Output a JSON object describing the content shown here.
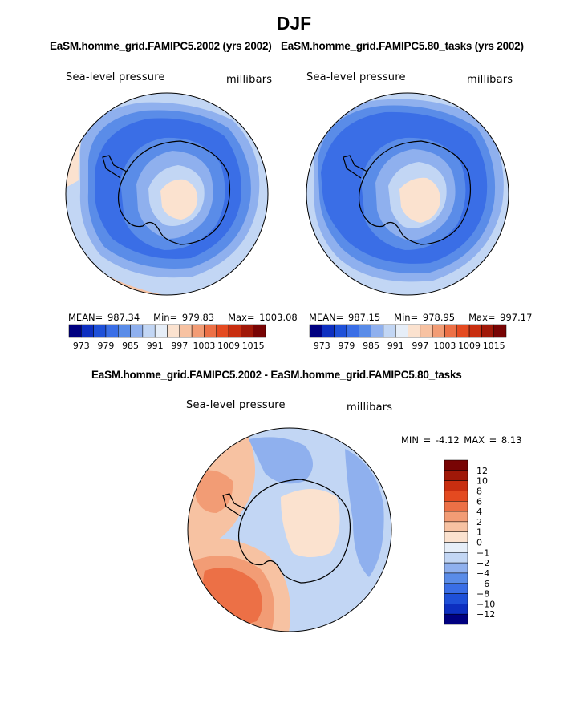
{
  "season": "DJF",
  "panels": [
    {
      "title": "EaSM.homme_grid.FAMIPC5.2002 (yrs 2002)",
      "variable": "Sea-level pressure",
      "units": "millibars",
      "mean_label": "MEAN=",
      "mean": "987.34",
      "min_label": "Min=",
      "min": "979.83",
      "max_label": "Max=",
      "max": "1003.08"
    },
    {
      "title": "EaSM.homme_grid.FAMIPC5.80_tasks (yrs 2002)",
      "variable": "Sea-level pressure",
      "units": "millibars",
      "mean_label": "MEAN=",
      "mean": "987.15",
      "min_label": "Min=",
      "min": "978.95",
      "max_label": "Max=",
      "max": "997.17"
    }
  ],
  "diff": {
    "title": "EaSM.homme_grid.FAMIPC5.2002 - EaSM.homme_grid.FAMIPC5.80_tasks",
    "variable": "Sea-level pressure",
    "units": "millibars",
    "min_label": "MIN =",
    "min": "-4.12",
    "max_label": "MAX =",
    "max": "8.13"
  },
  "chart_data": [
    {
      "type": "heatmap",
      "projection": "south polar stereographic",
      "title": "EaSM.homme_grid.FAMIPC5.2002 (yrs 2002)",
      "variable": "Sea-level pressure",
      "units": "millibars",
      "colorbar_ticks": [
        973,
        979,
        985,
        991,
        997,
        1003,
        1009,
        1015
      ],
      "colorbar_colors": [
        "#000080",
        "#0d2fc0",
        "#1e50d8",
        "#3a6ee6",
        "#5a8ce8",
        "#8fb0ee",
        "#c2d6f4",
        "#e6eef8",
        "#fbe2cf",
        "#f7c2a2",
        "#f29c75",
        "#ec7046",
        "#e44a20",
        "#c82e10",
        "#a01808",
        "#780404"
      ],
      "mean": 987.34,
      "min": 979.83,
      "max": 1003.08
    },
    {
      "type": "heatmap",
      "projection": "south polar stereographic",
      "title": "EaSM.homme_grid.FAMIPC5.80_tasks (yrs 2002)",
      "variable": "Sea-level pressure",
      "units": "millibars",
      "colorbar_ticks": [
        973,
        979,
        985,
        991,
        997,
        1003,
        1009,
        1015
      ],
      "colorbar_colors": [
        "#000080",
        "#0d2fc0",
        "#1e50d8",
        "#3a6ee6",
        "#5a8ce8",
        "#8fb0ee",
        "#c2d6f4",
        "#e6eef8",
        "#fbe2cf",
        "#f7c2a2",
        "#f29c75",
        "#ec7046",
        "#e44a20",
        "#c82e10",
        "#a01808",
        "#780404"
      ],
      "mean": 987.15,
      "min": 978.95,
      "max": 997.17
    },
    {
      "type": "heatmap",
      "projection": "south polar stereographic",
      "title": "EaSM.homme_grid.FAMIPC5.2002 - EaSM.homme_grid.FAMIPC5.80_tasks",
      "variable": "Sea-level pressure",
      "units": "millibars",
      "colorbar_ticks": [
        "12",
        "10",
        "8",
        "6",
        "4",
        "2",
        "1",
        "0",
        "−1",
        "−2",
        "−4",
        "−6",
        "−8",
        "−10",
        "−12"
      ],
      "colorbar_colors": [
        "#780404",
        "#a01808",
        "#c82e10",
        "#e44a20",
        "#ec7046",
        "#f29c75",
        "#f7c2a2",
        "#fbe2cf",
        "#e6eef8",
        "#c2d6f4",
        "#8fb0ee",
        "#5a8ce8",
        "#3a6ee6",
        "#1e50d8",
        "#0d2fc0",
        "#000080"
      ],
      "min": -4.12,
      "max": 8.13
    }
  ]
}
